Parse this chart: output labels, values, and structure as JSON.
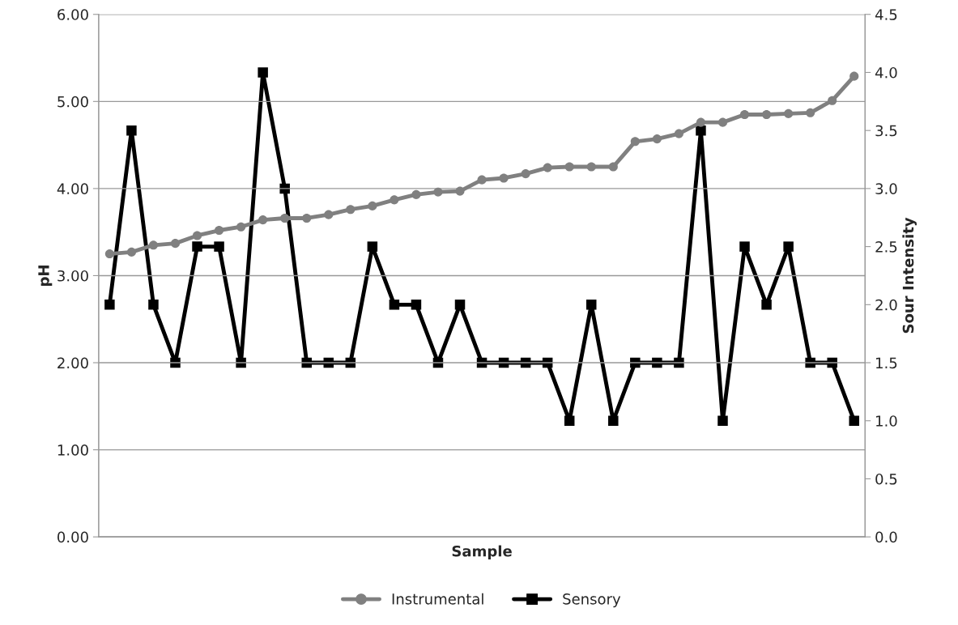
{
  "chart_data": {
    "type": "line",
    "xlabel": "Sample",
    "ylabel": "pH",
    "y2label": "Sour Intensity",
    "categories": [
      null,
      null,
      null,
      null,
      null,
      null,
      null,
      null,
      null,
      null,
      null,
      null,
      null,
      null,
      null,
      null,
      null,
      null,
      null,
      null,
      null,
      null,
      null,
      null,
      null,
      null,
      null,
      null,
      null,
      null,
      null,
      null,
      null,
      null,
      null
    ],
    "series": [
      {
        "name": "Instrumental",
        "color": "#808080",
        "marker": "circle",
        "values": [
          3.25,
          3.27,
          3.35,
          3.37,
          3.46,
          3.52,
          3.56,
          3.64,
          3.66,
          3.66,
          3.7,
          3.76,
          3.8,
          3.87,
          3.93,
          3.96,
          3.97,
          4.1,
          4.12,
          4.17,
          4.24,
          4.25,
          4.25,
          4.25,
          4.54,
          4.57,
          4.63,
          4.76,
          4.76,
          4.85,
          4.85,
          4.86,
          4.87,
          5.01,
          5.29
        ]
      },
      {
        "name": "Sensory",
        "color": "#000000",
        "marker": "square",
        "axis": "y2",
        "values": [
          2.0,
          3.5,
          2.0,
          1.5,
          2.5,
          2.5,
          1.5,
          4.0,
          3.0,
          1.5,
          1.5,
          1.5,
          2.5,
          2.0,
          2.0,
          1.5,
          2.0,
          1.5,
          1.5,
          1.5,
          1.5,
          1.0,
          2.0,
          1.0,
          1.5,
          1.5,
          1.5,
          3.5,
          1.0,
          2.5,
          2.0,
          2.5,
          1.5,
          1.5,
          1.0
        ]
      }
    ],
    "ylim": [
      0,
      6
    ],
    "yticks": [
      {
        "value": 0,
        "label": "0.00"
      },
      {
        "value": 1,
        "label": "1.00"
      },
      {
        "value": 2,
        "label": "2.00"
      },
      {
        "value": 3,
        "label": "3.00"
      },
      {
        "value": 4,
        "label": "4.00"
      },
      {
        "value": 5,
        "label": "5.00"
      },
      {
        "value": 6,
        "label": "6.00"
      }
    ],
    "y2lim": [
      0,
      4.5
    ],
    "y2ticks": [
      {
        "value": 0,
        "label": "0.0"
      },
      {
        "value": 0.5,
        "label": "0.5"
      },
      {
        "value": 1,
        "label": "1.0"
      },
      {
        "value": 1.5,
        "label": "1.5"
      },
      {
        "value": 2,
        "label": "2.0"
      },
      {
        "value": 2.5,
        "label": "2.5"
      },
      {
        "value": 3,
        "label": "3.0"
      },
      {
        "value": 3.5,
        "label": "3.5"
      },
      {
        "value": 4,
        "label": "4.0"
      },
      {
        "value": 4.5,
        "label": "4.5"
      }
    ],
    "grid": "y",
    "legend": "bottom"
  }
}
